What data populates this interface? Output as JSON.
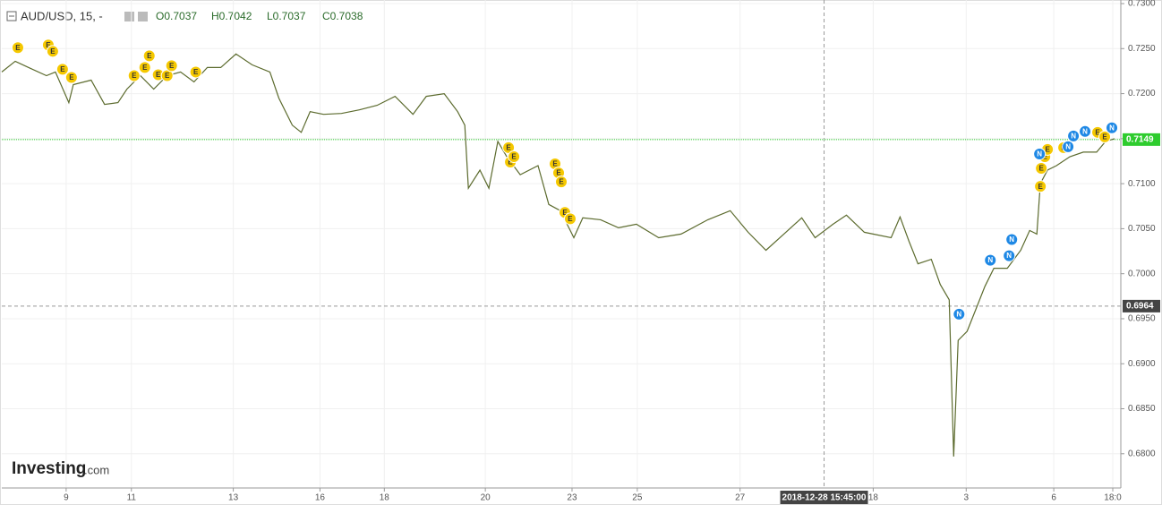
{
  "chart_data": {
    "type": "line",
    "header": {
      "symbol": "AUD/USD, 15, -",
      "ohlc": [
        "O0.7037",
        "H0.7042",
        "L0.7037",
        "C0.7038"
      ]
    },
    "logo": "Investing",
    "logo_suffix": ".com",
    "color": "#5c6b2e",
    "grid": true,
    "xlim": [
      0,
      1252
    ],
    "ylim": [
      0.6762,
      0.7304
    ],
    "xticks": [
      {
        "value": 72,
        "label": "9"
      },
      {
        "value": 145,
        "label": "11"
      },
      {
        "value": 259,
        "label": "13"
      },
      {
        "value": 356,
        "label": "16"
      },
      {
        "value": 428,
        "label": "18"
      },
      {
        "value": 541,
        "label": "20"
      },
      {
        "value": 638,
        "label": "23"
      },
      {
        "value": 711,
        "label": "25"
      },
      {
        "value": 826,
        "label": "27"
      },
      {
        "value": 975,
        "label": "18"
      },
      {
        "value": 1079,
        "label": "3"
      },
      {
        "value": 1177,
        "label": "6"
      },
      {
        "value": 1243,
        "label": "18:0"
      }
    ],
    "yticks": [
      {
        "value": 0.68,
        "label": "0.6800"
      },
      {
        "value": 0.685,
        "label": "0.6850"
      },
      {
        "value": 0.69,
        "label": "0.6900"
      },
      {
        "value": 0.695,
        "label": "0.6950"
      },
      {
        "value": 0.7,
        "label": "0.7000"
      },
      {
        "value": 0.705,
        "label": "0.7050"
      },
      {
        "value": 0.71,
        "label": "0.7100"
      },
      {
        "value": 0.715,
        "label": "0.7150"
      },
      {
        "value": 0.72,
        "label": "0.7200"
      },
      {
        "value": 0.725,
        "label": "0.7250"
      },
      {
        "value": 0.73,
        "label": "0.7300"
      }
    ],
    "x": [
      0,
      15,
      30,
      50,
      60,
      75,
      80,
      100,
      115,
      130,
      140,
      155,
      170,
      185,
      200,
      215,
      230,
      245,
      262,
      280,
      300,
      310,
      325,
      335,
      345,
      360,
      380,
      400,
      420,
      440,
      460,
      475,
      495,
      510,
      518,
      522,
      535,
      545,
      555,
      565,
      580,
      600,
      612,
      625,
      640,
      650,
      670,
      690,
      710,
      735,
      760,
      790,
      815,
      835,
      855,
      875,
      895,
      910,
      930,
      945,
      965,
      995,
      1005,
      1015,
      1025,
      1040,
      1050,
      1060,
      1065,
      1070,
      1080,
      1090,
      1100,
      1110,
      1125,
      1140,
      1150,
      1158,
      1162,
      1170,
      1180,
      1195,
      1210,
      1225,
      1235,
      1245
    ],
    "values": [
      0.7224,
      0.7236,
      0.7229,
      0.722,
      0.7224,
      0.719,
      0.721,
      0.7215,
      0.7188,
      0.719,
      0.7205,
      0.722,
      0.7205,
      0.722,
      0.7224,
      0.7213,
      0.7229,
      0.7229,
      0.7244,
      0.7232,
      0.7224,
      0.7195,
      0.7165,
      0.7157,
      0.718,
      0.7177,
      0.7178,
      0.7182,
      0.7187,
      0.7197,
      0.7177,
      0.7197,
      0.72,
      0.718,
      0.7165,
      0.7095,
      0.7115,
      0.7095,
      0.7147,
      0.713,
      0.711,
      0.712,
      0.7077,
      0.707,
      0.704,
      0.7062,
      0.706,
      0.7051,
      0.7055,
      0.704,
      0.7044,
      0.706,
      0.707,
      0.7046,
      0.7026,
      0.7044,
      0.7062,
      0.704,
      0.7055,
      0.7065,
      0.7046,
      0.704,
      0.7063,
      0.7036,
      0.7011,
      0.7016,
      0.6988,
      0.6971,
      0.6797,
      0.6926,
      0.6936,
      0.6961,
      0.6986,
      0.7006,
      0.7006,
      0.7026,
      0.7048,
      0.7044,
      0.71,
      0.7115,
      0.712,
      0.713,
      0.7135,
      0.7135,
      0.7147,
      0.715
    ],
    "price_line": 0.7149,
    "crosshair_y": 0.6964,
    "crosshair_x": {
      "value": 920,
      "label": "2018-12-28 15:45:00"
    },
    "events": [
      {
        "label": "E",
        "x": 18,
        "value": 0.7251
      },
      {
        "label": "E",
        "x": 52,
        "value": 0.7254
      },
      {
        "label": "E",
        "x": 57,
        "value": 0.7247
      },
      {
        "label": "E",
        "x": 68,
        "value": 0.7227
      },
      {
        "label": "E",
        "x": 78,
        "value": 0.7218
      },
      {
        "label": "E",
        "x": 148,
        "value": 0.722
      },
      {
        "label": "E",
        "x": 160,
        "value": 0.7229
      },
      {
        "label": "E",
        "x": 165,
        "value": 0.7242
      },
      {
        "label": "E",
        "x": 175,
        "value": 0.7221
      },
      {
        "label": "E",
        "x": 185,
        "value": 0.722
      },
      {
        "label": "E",
        "x": 190,
        "value": 0.7231
      },
      {
        "label": "E",
        "x": 217,
        "value": 0.7224
      },
      {
        "label": "E",
        "x": 567,
        "value": 0.714
      },
      {
        "label": "E",
        "x": 569,
        "value": 0.7124
      },
      {
        "label": "E",
        "x": 573,
        "value": 0.713
      },
      {
        "label": "E",
        "x": 619,
        "value": 0.7122
      },
      {
        "label": "E",
        "x": 623,
        "value": 0.7112
      },
      {
        "label": "E",
        "x": 626,
        "value": 0.7102
      },
      {
        "label": "E",
        "x": 630,
        "value": 0.7068
      },
      {
        "label": "E",
        "x": 636,
        "value": 0.7061
      },
      {
        "label": "E",
        "x": 1162,
        "value": 0.7097
      },
      {
        "label": "E",
        "x": 1163,
        "value": 0.7117
      },
      {
        "label": "E",
        "x": 1167,
        "value": 0.713
      },
      {
        "label": "E",
        "x": 1170,
        "value": 0.7138
      },
      {
        "label": "E",
        "x": 1188,
        "value": 0.714
      },
      {
        "label": "E",
        "x": 1226,
        "value": 0.7157
      },
      {
        "label": "E",
        "x": 1234,
        "value": 0.7152
      },
      {
        "label": "N",
        "x": 1071,
        "value": 0.6955
      },
      {
        "label": "N",
        "x": 1106,
        "value": 0.7015
      },
      {
        "label": "N",
        "x": 1127,
        "value": 0.702
      },
      {
        "label": "N",
        "x": 1130,
        "value": 0.7038
      },
      {
        "label": "N",
        "x": 1161,
        "value": 0.7133
      },
      {
        "label": "N",
        "x": 1193,
        "value": 0.7141
      },
      {
        "label": "N",
        "x": 1199,
        "value": 0.7153
      },
      {
        "label": "N",
        "x": 1212,
        "value": 0.7158
      },
      {
        "label": "N",
        "x": 1242,
        "value": 0.7162
      }
    ]
  }
}
